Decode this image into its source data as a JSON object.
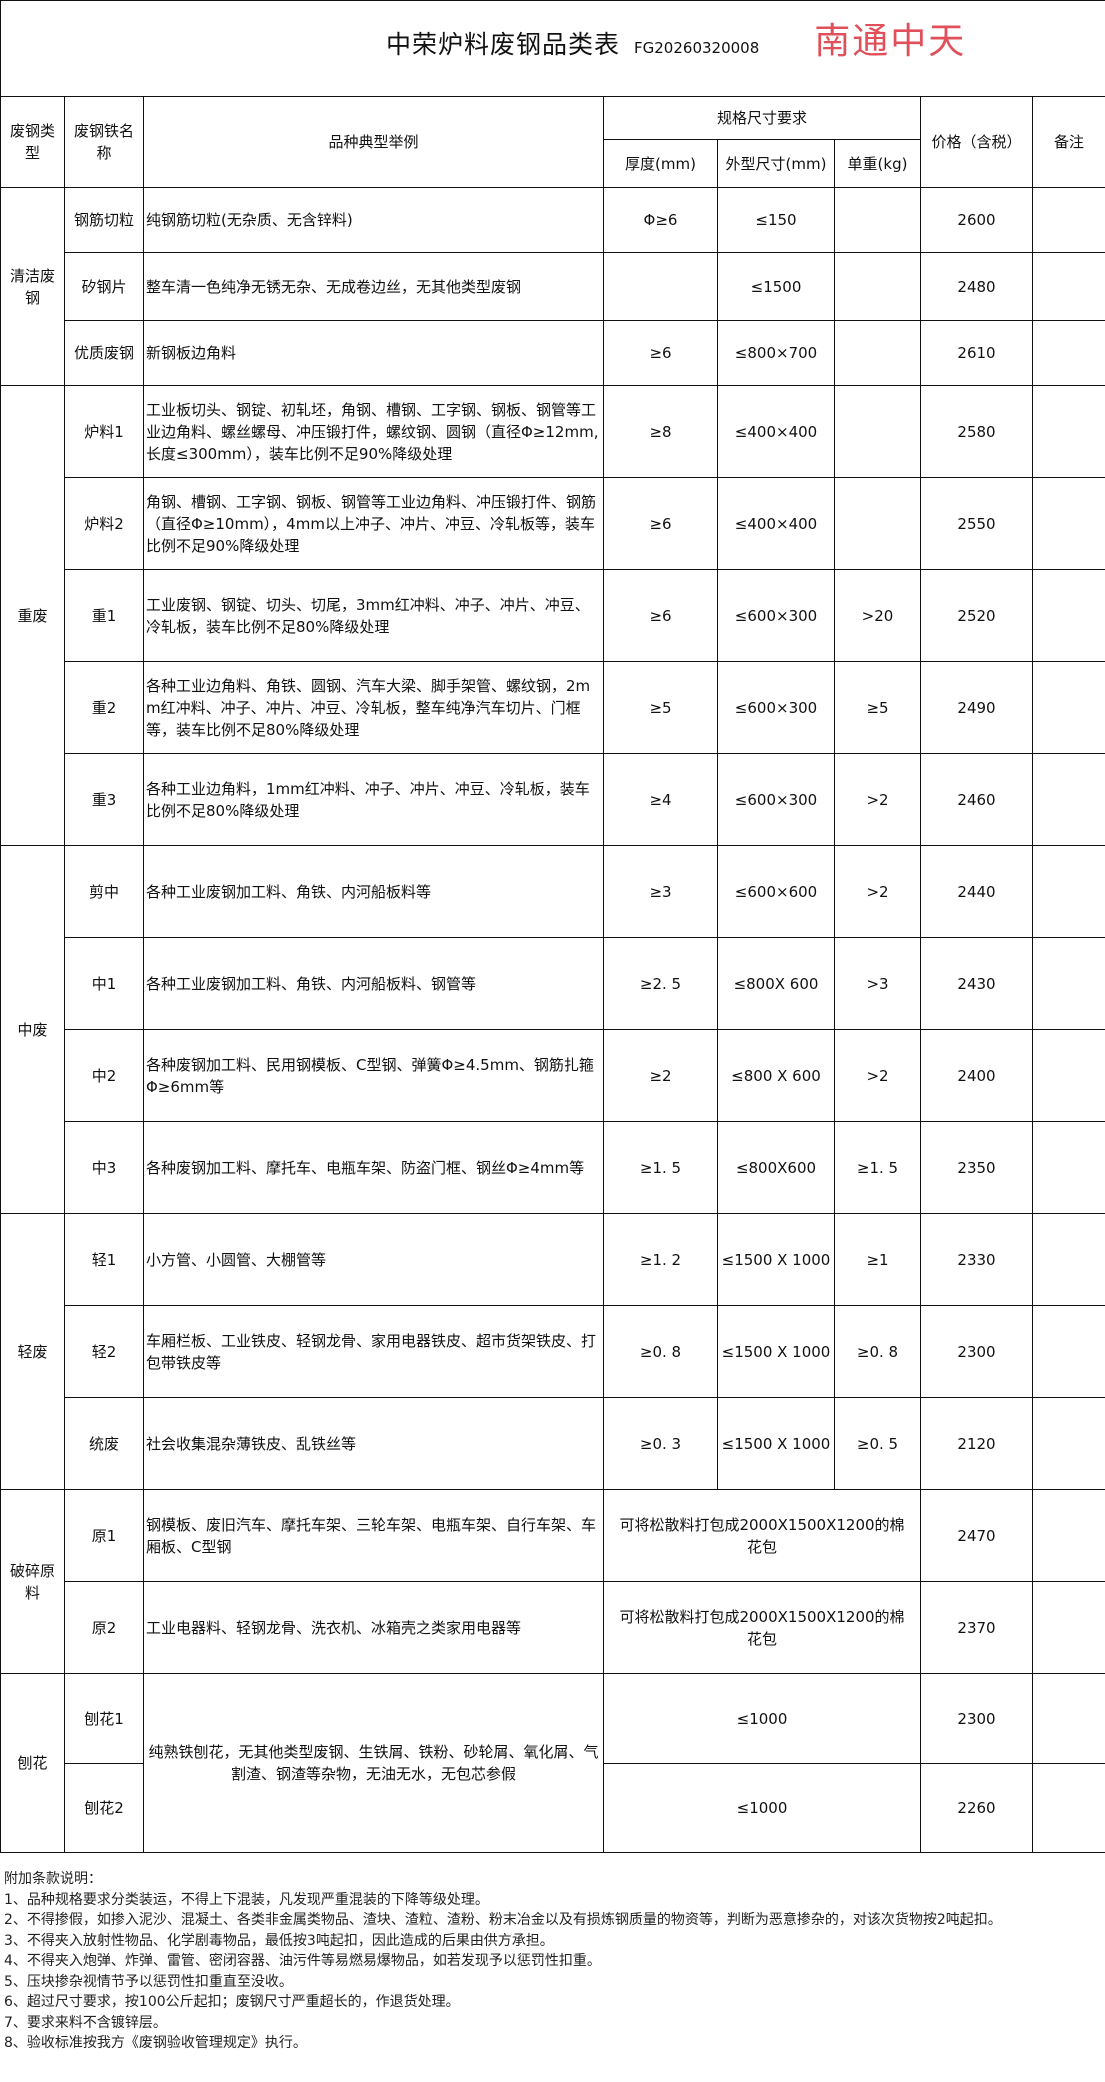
{
  "header": {
    "title": "中荣炉料废钢品类表",
    "code": "FG20260320008",
    "stamp": "南通中天"
  },
  "columns": {
    "type": "废钢类型",
    "name": "废钢铁名称",
    "desc": "品种典型举例",
    "spec": "规格尺寸要求",
    "thickness": "厚度(mm)",
    "size": "外型尺寸(mm)",
    "weight": "单重(kg)",
    "price": "价格（含税）",
    "remark": "备注"
  },
  "groups": [
    {
      "type": "清洁废钢",
      "rows": [
        {
          "name": "钢筋切粒",
          "desc": "纯钢筋切粒(无杂质、无含锌料)",
          "thickness": "Φ≥6",
          "size": "≤150",
          "weight": "",
          "price": "2600"
        },
        {
          "name": "矽钢片",
          "desc": "整车清一色纯净无锈无杂、无成卷边丝，无其他类型废钢",
          "thickness": "",
          "size": "≤1500",
          "weight": "",
          "price": "2480"
        },
        {
          "name": "优质废钢",
          "desc": "新钢板边角料",
          "thickness": "≥6",
          "size": "≤800×700",
          "weight": "",
          "price": "2610"
        }
      ]
    },
    {
      "type": "重废",
      "rows": [
        {
          "name": "炉料1",
          "desc": "工业板切头、钢锭、初轧坯，角钢、槽钢、工字钢、钢板、钢管等工业边角料、螺丝螺母、冲压锻打件，螺纹钢、圆钢（直径Φ≥12mm,长度≤300mm），装车比例不足90%降级处理",
          "thickness": "≥8",
          "size": "≤400×400",
          "weight": "",
          "price": "2580"
        },
        {
          "name": "炉料2",
          "desc": "角钢、槽钢、工字钢、钢板、钢管等工业边角料、冲压锻打件、钢筋（直径Φ≥10mm），4mm以上冲子、冲片、冲豆、冷轧板等，装车比例不足90%降级处理",
          "thickness": "≥6",
          "size": "≤400×400",
          "weight": "",
          "price": "2550"
        },
        {
          "name": "重1",
          "desc": "工业废钢、钢锭、切头、切尾，3mm红冲料、冲子、冲片、冲豆、冷轧板，装车比例不足80%降级处理",
          "thickness": "≥6",
          "size": "≤600×300",
          "weight": ">20",
          "price": "2520"
        },
        {
          "name": "重2",
          "desc": "各种工业边角料、角铁、圆钢、汽车大梁、脚手架管、螺纹钢，2mm红冲料、冲子、冲片、冲豆、冷轧板，整车纯净汽车切片、门框等，装车比例不足80%降级处理",
          "thickness": "≥5",
          "size": "≤600×300",
          "weight": "≥5",
          "price": "2490"
        },
        {
          "name": "重3",
          "desc": "各种工业边角料，1mm红冲料、冲子、冲片、冲豆、冷轧板，装车比例不足80%降级处理",
          "thickness": "≥4",
          "size": "≤600×300",
          "weight": ">2",
          "price": "2460"
        }
      ]
    },
    {
      "type": "中废",
      "rows": [
        {
          "name": "剪中",
          "desc": "各种工业废钢加工料、角铁、内河船板料等",
          "thickness": "≥3",
          "size": "≤600×600",
          "weight": ">2",
          "price": "2440"
        },
        {
          "name": "中1",
          "desc": "各种工业废钢加工料、角铁、内河船板料、钢管等",
          "thickness": "≥2. 5",
          "size": "≤800X 600",
          "weight": ">3",
          "price": "2430"
        },
        {
          "name": "中2",
          "desc": "各种废钢加工料、民用钢模板、C型钢、弹簧Φ≥4.5mm、钢筋扎箍Φ≥6mm等",
          "thickness": "≥2",
          "size": "≤800 X 600",
          "weight": ">2",
          "price": "2400"
        },
        {
          "name": "中3",
          "desc": "各种废钢加工料、摩托车、电瓶车架、防盗门框、钢丝Φ≥4mm等",
          "thickness": "≥1. 5",
          "size": "≤800X600",
          "weight": "≥1. 5",
          "price": "2350"
        }
      ]
    },
    {
      "type": "轻废",
      "rows": [
        {
          "name": "轻1",
          "desc": "小方管、小圆管、大棚管等",
          "thickness": "≥1. 2",
          "size": "≤1500 X 1000",
          "weight": "≥1",
          "price": "2330"
        },
        {
          "name": "轻2",
          "desc": "车厢栏板、工业铁皮、轻钢龙骨、家用电器铁皮、超市货架铁皮、打包带铁皮等",
          "thickness": "≥0. 8",
          "size": "≤1500 X 1000",
          "weight": "≥0. 8",
          "price": "2300"
        },
        {
          "name": "统废",
          "desc": "社会收集混杂薄铁皮、乱铁丝等",
          "thickness": "≥0. 3",
          "size": "≤1500 X 1000",
          "weight": "≥0. 5",
          "price": "2120"
        }
      ]
    },
    {
      "type": "破碎原料",
      "rows": [
        {
          "name": "原1",
          "desc": "钢模板、废旧汽车、摩托车架、三轮车架、电瓶车架、自行车架、车厢板、C型钢",
          "spec": "可将松散料打包成2000X1500X1200的棉花包",
          "price": "2470"
        },
        {
          "name": "原2",
          "desc": "工业电器料、轻钢龙骨、洗衣机、冰箱壳之类家用电器等",
          "spec": "可将松散料打包成2000X1500X1200的棉花包",
          "price": "2370"
        }
      ]
    },
    {
      "type": "刨花",
      "shared_desc": "纯熟铁刨花，无其他类型废钢、生铁屑、铁粉、砂轮屑、氧化屑、气割渣、钢渣等杂物，无油无水，无包芯参假",
      "rows": [
        {
          "name": "刨花1",
          "spec": "≤1000",
          "price": "2300"
        },
        {
          "name": "刨花2",
          "spec": "≤1000",
          "price": "2260"
        }
      ]
    }
  ],
  "notes": {
    "title": "附加条款说明：",
    "items": [
      "1、品种规格要求分类装运，不得上下混装，凡发现严重混装的下降等级处理。",
      "2、不得掺假，如掺入泥沙、混凝土、各类非金属类物品、渣块、渣粒、渣粉、粉末冶金以及有损炼钢质量的物资等，判断为恶意掺杂的，对该次货物按2吨起扣。",
      "3、不得夹入放射性物品、化学剧毒物品，最低按3吨起扣，因此造成的后果由供方承担。",
      "4、不得夹入炮弹、炸弹、雷管、密闭容器、油污件等易燃易爆物品，如若发现予以惩罚性扣重。",
      "5、压块掺杂视情节予以惩罚性扣重直至没收。",
      "6、超过尺寸要求，按100公斤起扣；废钢尺寸严重超长的，作退货处理。",
      "7、要求来料不含镀锌层。",
      "8、验收标准按我方《废钢验收管理规定》执行。"
    ]
  }
}
